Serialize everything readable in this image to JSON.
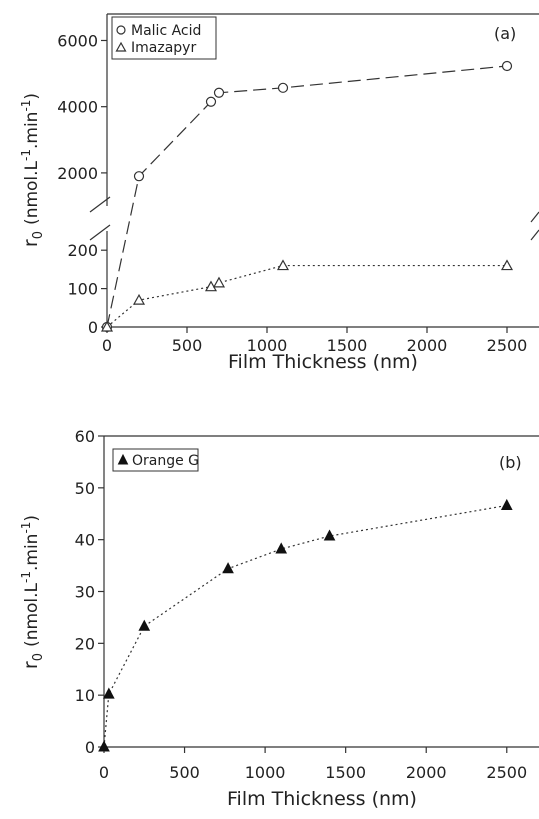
{
  "chart_data": [
    {
      "panel": "(a)",
      "type": "line",
      "xlabel": "Film Thickness (nm)",
      "ylabel_main": "r",
      "ylabel_sub": "0",
      "ylabel_unit": "(nmol.L-1.min-1)",
      "xlim": [
        0,
        2700
      ],
      "ylim_lower": [
        0,
        250
      ],
      "ylim_upper": [
        1000,
        6800
      ],
      "x_ticks": [
        0,
        500,
        1000,
        1500,
        2000,
        2500
      ],
      "y_ticks_lower": [
        0,
        100,
        200
      ],
      "y_ticks_upper": [
        2000,
        4000,
        6000
      ],
      "legend_position": "top-left",
      "series": [
        {
          "name": "Malic Acid",
          "marker": "open-circle",
          "line": "dashed",
          "points": [
            [
              0,
              0
            ],
            [
              200,
              1900
            ],
            [
              650,
              4150
            ],
            [
              700,
              4420
            ],
            [
              1100,
              4570
            ],
            [
              2500,
              5230
            ]
          ]
        },
        {
          "name": "Imazapyr",
          "marker": "open-triangle",
          "line": "dotted",
          "points": [
            [
              0,
              0
            ],
            [
              200,
              70
            ],
            [
              650,
              105
            ],
            [
              700,
              115
            ],
            [
              1100,
              160
            ],
            [
              2500,
              160
            ]
          ]
        }
      ]
    },
    {
      "panel": "(b)",
      "type": "line",
      "xlabel": "Film Thickness (nm)",
      "ylabel_main": "r",
      "ylabel_sub": "0",
      "ylabel_unit": "(nmol.L-1.min-1)",
      "xlim": [
        0,
        2700
      ],
      "ylim": [
        0,
        60
      ],
      "x_ticks": [
        0,
        500,
        1000,
        1500,
        2000,
        2500
      ],
      "y_ticks": [
        0,
        10,
        20,
        30,
        40,
        50,
        60
      ],
      "legend_position": "top-left",
      "series": [
        {
          "name": "Orange G",
          "marker": "filled-triangle",
          "line": "dotted",
          "points": [
            [
              0,
              0
            ],
            [
              30,
              10.2
            ],
            [
              250,
              23.3
            ],
            [
              770,
              34.4
            ],
            [
              1100,
              38.2
            ],
            [
              1400,
              40.7
            ],
            [
              2500,
              46.6
            ]
          ]
        }
      ]
    }
  ]
}
